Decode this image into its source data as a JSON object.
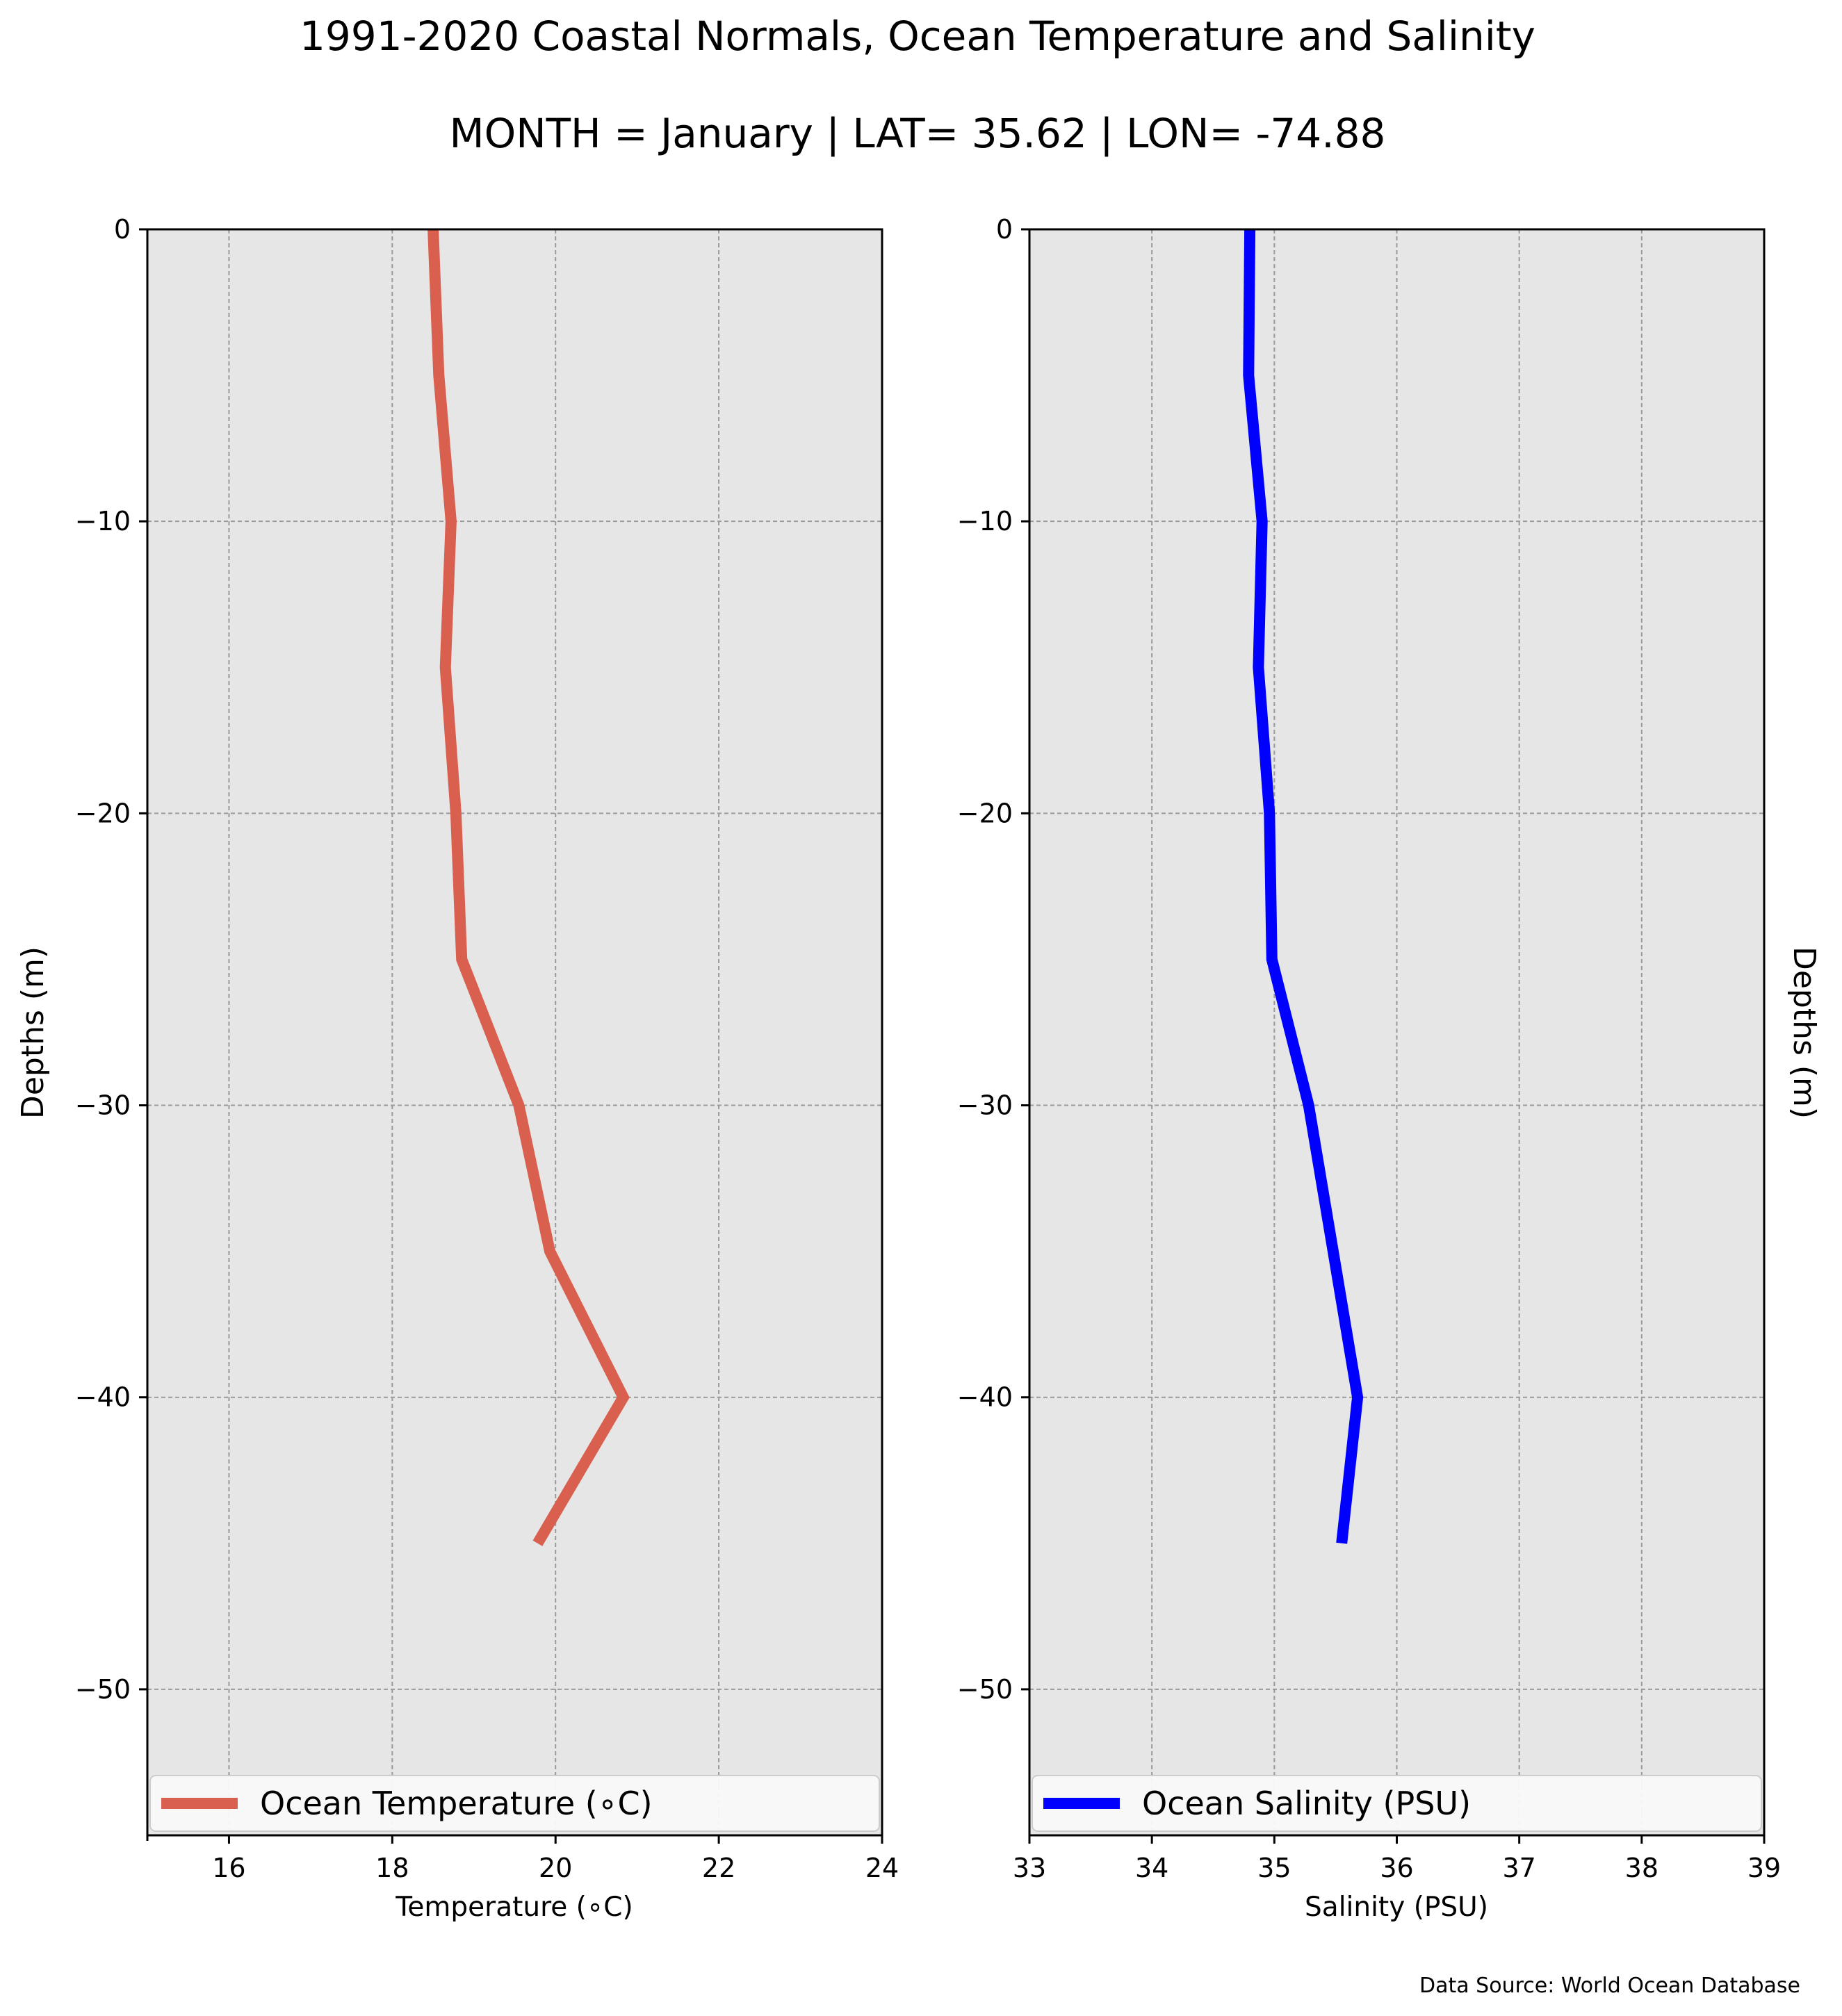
{
  "figure": {
    "title": "1991-2020 Coastal Normals, Ocean Temperature and Salinity",
    "subtitle": "MONTH = January | LAT= 35.62 | LON= -74.88",
    "source_note": "Data Source: World Ocean Database"
  },
  "chart_data": [
    {
      "type": "line",
      "orientation": "vertical-profile",
      "xlabel": "Temperature ($^\\circ$C)",
      "xlabel_display": "Temperature (∘C)",
      "ylabel": "Depths (m)",
      "xlim": [
        15,
        24
      ],
      "ylim": [
        -55,
        0
      ],
      "xticks": [
        16,
        18,
        20,
        22,
        24
      ],
      "xtick_labels": [
        "16",
        "18",
        "20",
        "22",
        "24"
      ],
      "yticks": [
        0,
        -10,
        -20,
        -30,
        -40,
        -50
      ],
      "ytick_labels": [
        "0",
        "−10",
        "−20",
        "−30",
        "−40",
        "−50"
      ],
      "grid": true,
      "legend_position": "bottom",
      "background_color": "#e6e6e6",
      "series": [
        {
          "name": "Ocean Temperature (∘C)",
          "color": "#d9604f",
          "points": [
            {
              "x": 18.5,
              "y": 0
            },
            {
              "x": 18.57,
              "y": -5
            },
            {
              "x": 18.72,
              "y": -10
            },
            {
              "x": 18.65,
              "y": -15
            },
            {
              "x": 18.78,
              "y": -20
            },
            {
              "x": 18.85,
              "y": -25
            },
            {
              "x": 19.55,
              "y": -30
            },
            {
              "x": 19.93,
              "y": -35
            },
            {
              "x": 20.83,
              "y": -40
            },
            {
              "x": 19.78,
              "y": -45
            }
          ]
        }
      ]
    },
    {
      "type": "line",
      "orientation": "vertical-profile",
      "xlabel": "Salinity (PSU)",
      "ylabel": "Depths (m)",
      "xlim": [
        33,
        39
      ],
      "ylim": [
        -55,
        0
      ],
      "xticks": [
        33,
        34,
        35,
        36,
        37,
        38,
        39
      ],
      "xtick_labels": [
        "33",
        "34",
        "35",
        "36",
        "37",
        "38",
        "39"
      ],
      "yticks": [
        0,
        -10,
        -20,
        -30,
        -40,
        -50
      ],
      "ytick_labels": [
        "0",
        "−10",
        "−20",
        "−30",
        "−40",
        "−50"
      ],
      "grid": true,
      "legend_position": "bottom",
      "background_color": "#e6e6e6",
      "series": [
        {
          "name": "Ocean Salinity (PSU)",
          "color": "#0000ff",
          "points": [
            {
              "x": 34.8,
              "y": 0
            },
            {
              "x": 34.79,
              "y": -5
            },
            {
              "x": 34.9,
              "y": -10
            },
            {
              "x": 34.87,
              "y": -15
            },
            {
              "x": 34.96,
              "y": -20
            },
            {
              "x": 34.98,
              "y": -25
            },
            {
              "x": 35.28,
              "y": -30
            },
            {
              "x": 35.48,
              "y": -35
            },
            {
              "x": 35.68,
              "y": -40
            },
            {
              "x": 35.55,
              "y": -45
            }
          ]
        }
      ]
    }
  ]
}
